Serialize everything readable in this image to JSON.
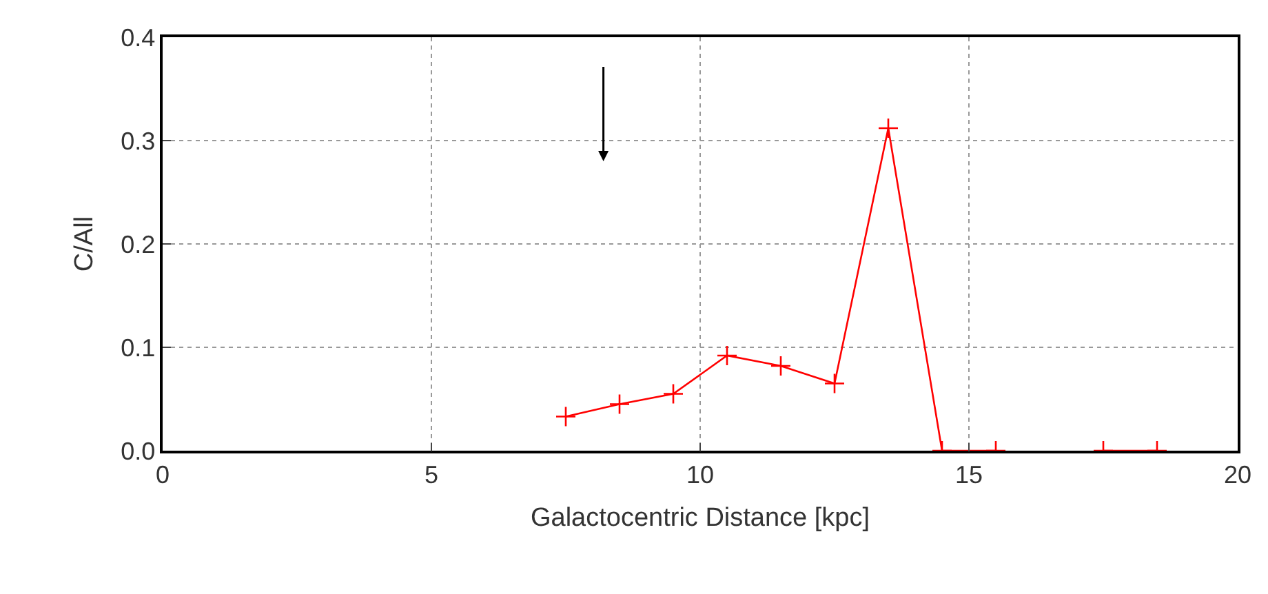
{
  "chart_data": {
    "type": "line",
    "xlabel": "Galactocentric Distance [kpc]",
    "ylabel": "C/All",
    "x": [
      7.5,
      8.5,
      9.5,
      10.5,
      11.5,
      12.5,
      13.5,
      14.5,
      15.5,
      16.5,
      17.5,
      18.5
    ],
    "series": [
      {
        "color": "#ff0000",
        "values": [
          0.033,
          0.045,
          0.055,
          0.092,
          0.082,
          0.065,
          0.312,
          0,
          0,
          null,
          0,
          0
        ]
      }
    ],
    "xlim": [
      0,
      20
    ],
    "xticks": [
      0,
      5,
      10,
      15,
      20
    ],
    "ylim": [
      0,
      0.4
    ],
    "yticks": [
      {
        "value": 0,
        "label": "0.0"
      },
      0.1,
      0.2,
      0.3,
      0.4
    ],
    "grid": true,
    "marker": "cross",
    "line_style": "solid"
  }
}
